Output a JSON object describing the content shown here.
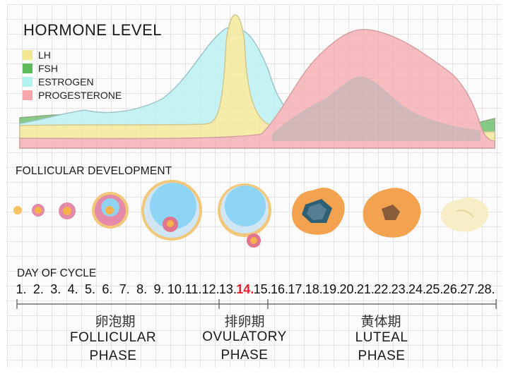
{
  "title": "HORMONE LEVEL",
  "legend": [
    {
      "label": "LH",
      "color": "#f3e790"
    },
    {
      "label": "FSH",
      "color": "#5fbb5e"
    },
    {
      "label": "ESTROGEN",
      "color": "#b4f1f1"
    },
    {
      "label": "PROGESTERONE",
      "color": "#f6a7ab"
    }
  ],
  "follicular_development_label": "FOLLICULAR DEVELOPMENT",
  "day_of_cycle_label": "DAY OF CYCLE",
  "days": [
    "1.",
    "2.",
    "3.",
    "4.",
    "5.",
    "6.",
    "7.",
    "8.",
    "9.",
    "10.",
    "11.",
    "12.",
    "13.",
    "14.",
    "15.",
    "16.",
    "17.",
    "18.",
    "19.",
    "20.",
    "21.",
    "22.",
    "23.",
    "24.",
    "25.",
    "26.",
    "27.",
    "28."
  ],
  "highlight_day": "14.",
  "phases": [
    {
      "cn": "卵泡期",
      "en1": "FOLLICULAR",
      "en2": "PHASE"
    },
    {
      "cn": "排卵期",
      "en1": "OVULATORY",
      "en2": "PHASE"
    },
    {
      "cn": "黄体期",
      "en1": "LUTEAL",
      "en2": "PHASE"
    }
  ]
}
